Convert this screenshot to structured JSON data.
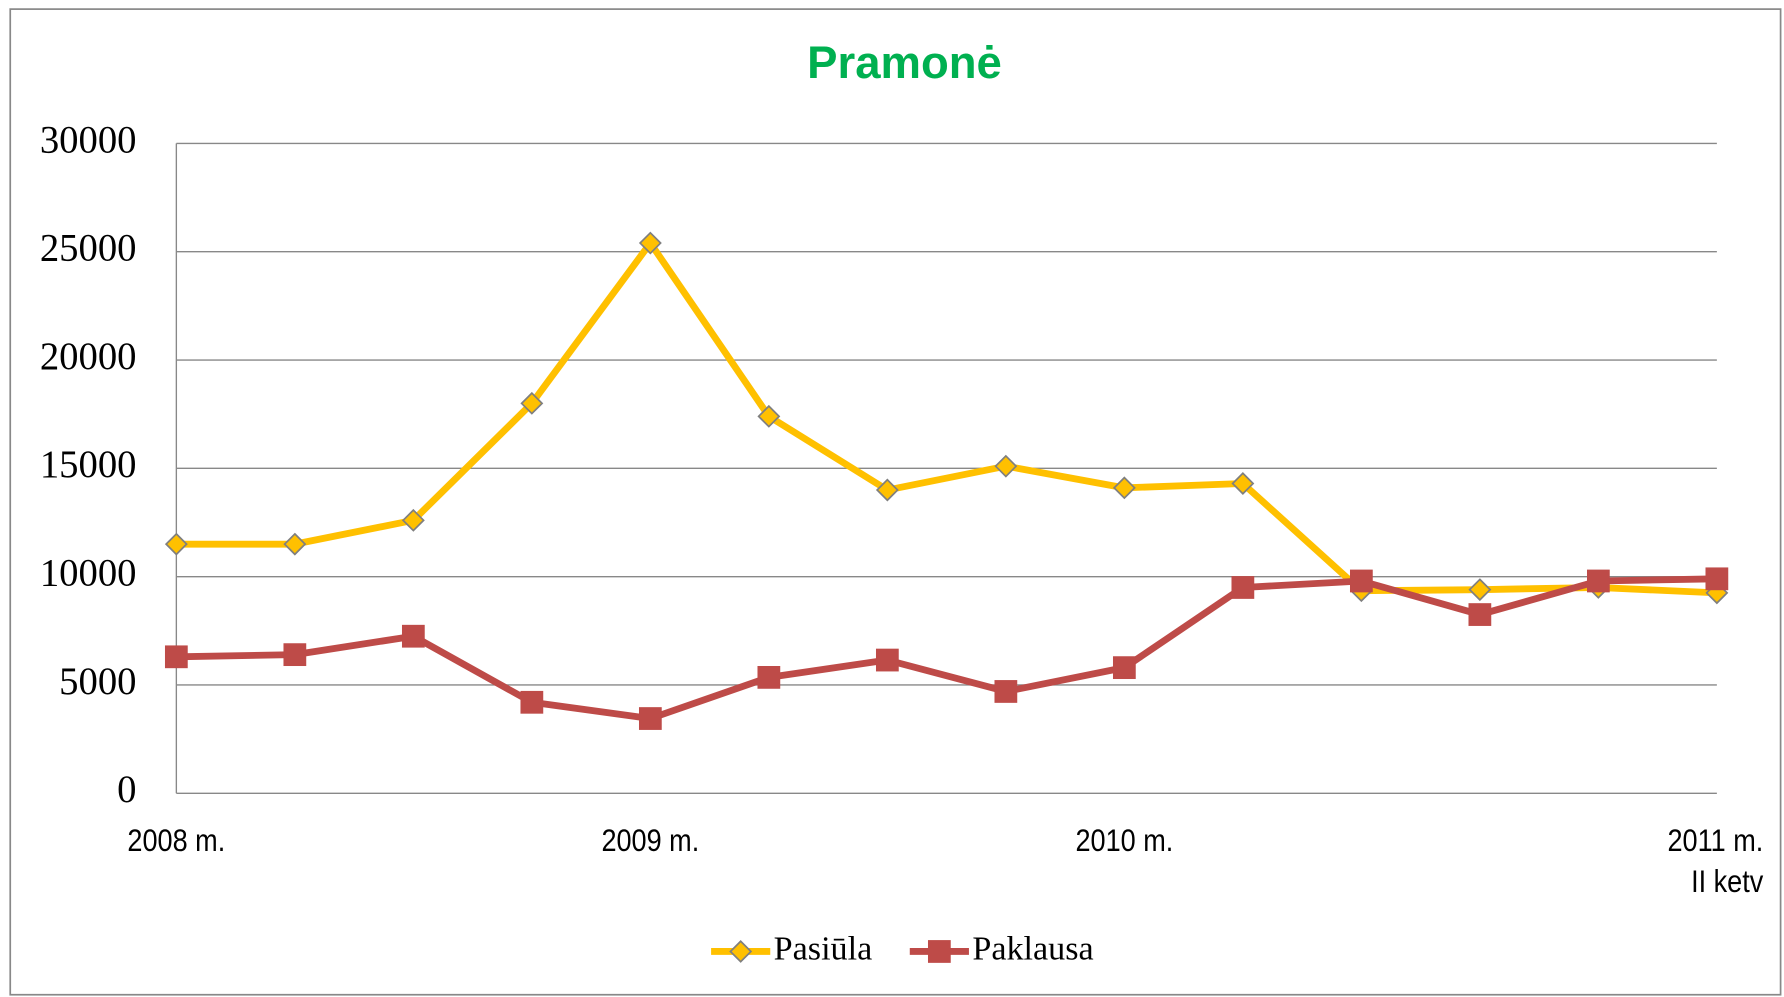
{
  "chart_data": {
    "type": "line",
    "title": "Pramonė",
    "categories": [
      "2008 m.",
      null,
      null,
      null,
      "2009 m.",
      null,
      null,
      null,
      "2010 m.",
      null,
      null,
      null,
      null,
      "2011 m.\nII ketv"
    ],
    "series": [
      {
        "name": "Pasiūla",
        "color": "#ffc000",
        "marker": "diamond",
        "values": [
          11500,
          11500,
          12600,
          18000,
          25400,
          17400,
          14000,
          15100,
          14100,
          14300,
          9350,
          9400,
          9500,
          9250
        ]
      },
      {
        "name": "Paklausa",
        "color": "#be4b48",
        "marker": "square",
        "values": [
          6300,
          6400,
          7250,
          4200,
          3450,
          5350,
          6150,
          4700,
          5800,
          9500,
          9800,
          8250,
          9800,
          9900
        ]
      }
    ],
    "ylim": [
      0,
      30000
    ],
    "yticks": [
      0,
      5000,
      10000,
      15000,
      20000,
      25000,
      30000
    ],
    "grid": true,
    "legend": "bottom"
  }
}
